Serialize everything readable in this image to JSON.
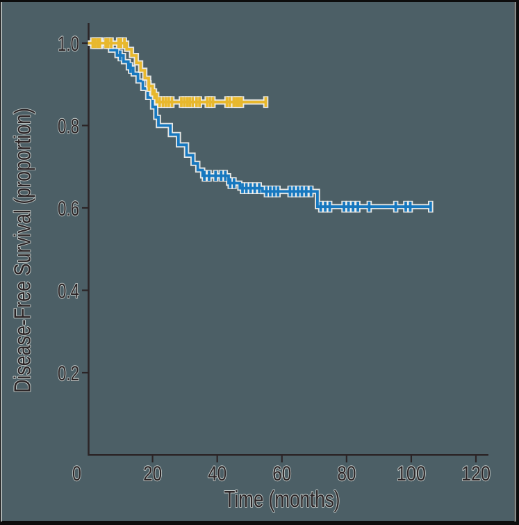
{
  "chart_data": {
    "type": "line",
    "subtype": "kaplan-meier-step",
    "title": "",
    "xlabel": "Time (months)",
    "ylabel": "Disease-Free Survival (proportion)",
    "x_ticks": [
      0,
      20,
      40,
      60,
      80,
      100,
      120
    ],
    "y_ticks": [
      {
        "v": 1.0,
        "label": "1.0"
      },
      {
        "v": 0.8,
        "label": "0.8"
      },
      {
        "v": 0.6,
        "label": "0.6"
      },
      {
        "v": 0.4,
        "label": "0.4"
      },
      {
        "v": 0.2,
        "label": "0.2"
      }
    ],
    "xlim": [
      0,
      124
    ],
    "ylim": [
      0,
      1.05
    ],
    "grid": false,
    "legend": "none",
    "colors": {
      "background": "#4C5F66",
      "frame": "#0D0D0D",
      "edge_highlight": "#ABB2B1",
      "axis": "#2B2426",
      "text_halo": "#DCE0DD",
      "curve_halo": "#F3F2EE"
    },
    "series": [
      {
        "name": "blue-arm",
        "color": "#1778BF",
        "steps": [
          [
            0,
            1.0
          ],
          [
            7,
            0.983
          ],
          [
            9,
            0.97
          ],
          [
            11,
            0.955
          ],
          [
            12.5,
            0.94
          ],
          [
            14,
            0.925
          ],
          [
            15.5,
            0.908
          ],
          [
            17,
            0.89
          ],
          [
            18.5,
            0.868
          ],
          [
            20,
            0.845
          ],
          [
            21,
            0.82
          ],
          [
            21.8,
            0.8
          ],
          [
            25.5,
            0.778
          ],
          [
            28,
            0.753
          ],
          [
            30.5,
            0.728
          ],
          [
            32.5,
            0.708
          ],
          [
            34,
            0.692
          ],
          [
            35.5,
            0.678
          ],
          [
            43.5,
            0.66
          ],
          [
            47,
            0.648
          ],
          [
            54,
            0.64
          ],
          [
            71,
            0.603
          ],
          [
            106.3,
            0.603
          ]
        ],
        "censors": [
          [
            3.8,
            1.0
          ],
          [
            10,
            0.97
          ],
          [
            13.2,
            0.94
          ],
          [
            36,
            0.678
          ],
          [
            37.5,
            0.678
          ],
          [
            39.5,
            0.678
          ],
          [
            41.2,
            0.678
          ],
          [
            42.5,
            0.678
          ],
          [
            44,
            0.66
          ],
          [
            45.2,
            0.66
          ],
          [
            47.8,
            0.648
          ],
          [
            49,
            0.648
          ],
          [
            50.3,
            0.648
          ],
          [
            51.6,
            0.648
          ],
          [
            53,
            0.648
          ],
          [
            55.2,
            0.64
          ],
          [
            56.4,
            0.64
          ],
          [
            57.6,
            0.64
          ],
          [
            58.8,
            0.64
          ],
          [
            62.5,
            0.64
          ],
          [
            63.7,
            0.64
          ],
          [
            65,
            0.64
          ],
          [
            66.2,
            0.64
          ],
          [
            67.5,
            0.64
          ],
          [
            69,
            0.64
          ],
          [
            72,
            0.603
          ],
          [
            73.4,
            0.603
          ],
          [
            74.8,
            0.603
          ],
          [
            79.2,
            0.603
          ],
          [
            80.6,
            0.603
          ],
          [
            82,
            0.603
          ],
          [
            83.5,
            0.603
          ],
          [
            87,
            0.603
          ],
          [
            95.2,
            0.603
          ],
          [
            98.3,
            0.603
          ],
          [
            99.7,
            0.603
          ],
          [
            106,
            0.603
          ]
        ]
      },
      {
        "name": "gold-arm",
        "color": "#E8B82D",
        "steps": [
          [
            0,
            1.0
          ],
          [
            12,
            0.985
          ],
          [
            13.5,
            0.97
          ],
          [
            15,
            0.952
          ],
          [
            16.3,
            0.934
          ],
          [
            17.6,
            0.915
          ],
          [
            18.8,
            0.896
          ],
          [
            20,
            0.876
          ],
          [
            21.3,
            0.857
          ],
          [
            55.2,
            0.857
          ]
        ],
        "censors": [
          [
            1.5,
            1.0
          ],
          [
            2.2,
            1.0
          ],
          [
            3,
            1.0
          ],
          [
            3.7,
            1.0
          ],
          [
            5.5,
            1.0
          ],
          [
            6.3,
            1.0
          ],
          [
            7.2,
            1.0
          ],
          [
            9.5,
            1.0
          ],
          [
            10.2,
            1.0
          ],
          [
            11.3,
            1.0
          ],
          [
            18.9,
            0.896
          ],
          [
            20.6,
            0.876
          ],
          [
            22.2,
            0.857
          ],
          [
            23.2,
            0.857
          ],
          [
            24.1,
            0.857
          ],
          [
            25,
            0.857
          ],
          [
            26,
            0.857
          ],
          [
            28.9,
            0.857
          ],
          [
            29.8,
            0.857
          ],
          [
            30.7,
            0.857
          ],
          [
            31.5,
            0.857
          ],
          [
            32.4,
            0.857
          ],
          [
            33.6,
            0.857
          ],
          [
            34.5,
            0.857
          ],
          [
            36.9,
            0.857
          ],
          [
            37.8,
            0.857
          ],
          [
            38.7,
            0.857
          ],
          [
            43,
            0.857
          ],
          [
            43.9,
            0.857
          ],
          [
            45.1,
            0.857
          ],
          [
            45.9,
            0.857
          ],
          [
            46.7,
            0.857
          ],
          [
            47.5,
            0.857
          ],
          [
            55,
            0.857
          ]
        ]
      }
    ]
  }
}
